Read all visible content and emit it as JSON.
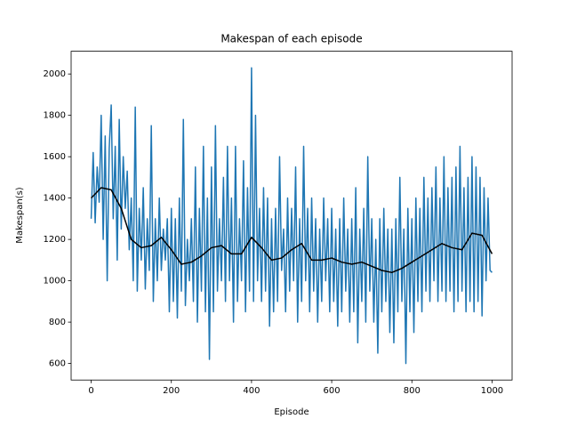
{
  "chart_data": {
    "type": "line",
    "title": "Makespan of each episode",
    "xlabel": "Episode",
    "ylabel": "Makespan(s)",
    "xlim": [
      -50,
      1050
    ],
    "ylim": [
      520,
      2110
    ],
    "xticks": [
      0,
      200,
      400,
      600,
      800,
      1000
    ],
    "yticks": [
      600,
      800,
      1000,
      1200,
      1400,
      1600,
      1800,
      2000
    ],
    "series": [
      {
        "color": "#1f77b4",
        "x": [
          0,
          5,
          10,
          15,
          20,
          25,
          30,
          35,
          40,
          45,
          50,
          55,
          60,
          65,
          70,
          75,
          80,
          85,
          90,
          95,
          100,
          105,
          110,
          115,
          120,
          125,
          130,
          135,
          140,
          145,
          150,
          155,
          160,
          165,
          170,
          175,
          180,
          185,
          190,
          195,
          200,
          205,
          210,
          215,
          220,
          225,
          230,
          235,
          240,
          245,
          250,
          255,
          260,
          265,
          270,
          275,
          280,
          285,
          290,
          295,
          300,
          305,
          310,
          315,
          320,
          325,
          330,
          335,
          340,
          345,
          350,
          355,
          360,
          365,
          370,
          375,
          380,
          385,
          390,
          395,
          400,
          405,
          410,
          415,
          420,
          425,
          430,
          435,
          440,
          445,
          450,
          455,
          460,
          465,
          470,
          475,
          480,
          485,
          490,
          495,
          500,
          505,
          510,
          515,
          520,
          525,
          530,
          535,
          540,
          545,
          550,
          555,
          560,
          565,
          570,
          575,
          580,
          585,
          590,
          595,
          600,
          605,
          610,
          615,
          620,
          625,
          630,
          635,
          640,
          645,
          650,
          655,
          660,
          665,
          670,
          675,
          680,
          685,
          690,
          695,
          700,
          705,
          710,
          715,
          720,
          725,
          730,
          735,
          740,
          745,
          750,
          755,
          760,
          765,
          770,
          775,
          780,
          785,
          790,
          795,
          800,
          805,
          810,
          815,
          820,
          825,
          830,
          835,
          840,
          845,
          850,
          855,
          860,
          865,
          870,
          875,
          880,
          885,
          890,
          895,
          900,
          905,
          910,
          915,
          920,
          925,
          930,
          935,
          940,
          945,
          950,
          955,
          960,
          965,
          970,
          975,
          980,
          985,
          990,
          995,
          1000
        ],
        "values": [
          1300,
          1620,
          1280,
          1550,
          1380,
          1800,
          1200,
          1700,
          1000,
          1640,
          1850,
          1300,
          1650,
          1100,
          1780,
          1250,
          1600,
          1350,
          1530,
          1150,
          1400,
          1000,
          1840,
          950,
          1350,
          1100,
          1450,
          960,
          1300,
          1050,
          1750,
          900,
          1300,
          1000,
          1400,
          1050,
          1250,
          1100,
          1300,
          850,
          1350,
          900,
          1300,
          820,
          1400,
          950,
          1780,
          880,
          1200,
          1000,
          1300,
          900,
          1550,
          800,
          1350,
          950,
          1650,
          850,
          1400,
          620,
          1550,
          850,
          1750,
          950,
          1300,
          1000,
          1500,
          900,
          1650,
          1000,
          1400,
          800,
          1650,
          900,
          1300,
          1000,
          1580,
          850,
          1450,
          950,
          2030,
          900,
          1800,
          1000,
          1350,
          900,
          1450,
          950,
          1400,
          780,
          1300,
          850,
          1350,
          900,
          1600,
          1050,
          1250,
          850,
          1400,
          950,
          1350,
          1000,
          1550,
          800,
          1300,
          900,
          1650,
          1000,
          1350,
          850,
          1400,
          950,
          1300,
          800,
          1250,
          900,
          1400,
          1000,
          1300,
          850,
          1350,
          900,
          1250,
          780,
          1300,
          850,
          1400,
          950,
          1250,
          800,
          1300,
          850,
          1450,
          700,
          1250,
          900,
          1350,
          800,
          1600,
          950,
          1300,
          800,
          1200,
          650,
          1300,
          850,
          1350,
          900,
          1250,
          750,
          1250,
          700,
          1300,
          850,
          1500,
          900,
          1250,
          600,
          1350,
          850,
          1300,
          750,
          1400,
          900,
          1350,
          850,
          1500,
          950,
          1400,
          900,
          1450,
          1000,
          1550,
          900,
          1400,
          950,
          1600,
          900,
          1450,
          950,
          1500,
          850,
          1550,
          900,
          1650,
          950,
          1450,
          850,
          1500,
          900,
          1600,
          850,
          1550,
          900,
          1500,
          830,
          1450,
          1000,
          1400,
          1050,
          1040
        ]
      },
      {
        "color": "#000000",
        "x": [
          0,
          25,
          50,
          75,
          100,
          125,
          150,
          175,
          200,
          225,
          250,
          275,
          300,
          325,
          350,
          375,
          400,
          425,
          450,
          475,
          500,
          525,
          550,
          575,
          600,
          625,
          650,
          675,
          700,
          725,
          750,
          775,
          800,
          825,
          850,
          875,
          900,
          925,
          950,
          975,
          1000
        ],
        "values": [
          1400,
          1450,
          1440,
          1350,
          1200,
          1160,
          1170,
          1210,
          1150,
          1080,
          1090,
          1120,
          1160,
          1170,
          1130,
          1130,
          1210,
          1160,
          1100,
          1110,
          1150,
          1180,
          1100,
          1100,
          1110,
          1090,
          1080,
          1090,
          1070,
          1050,
          1040,
          1060,
          1090,
          1120,
          1150,
          1180,
          1160,
          1150,
          1230,
          1220,
          1130
        ]
      }
    ]
  }
}
